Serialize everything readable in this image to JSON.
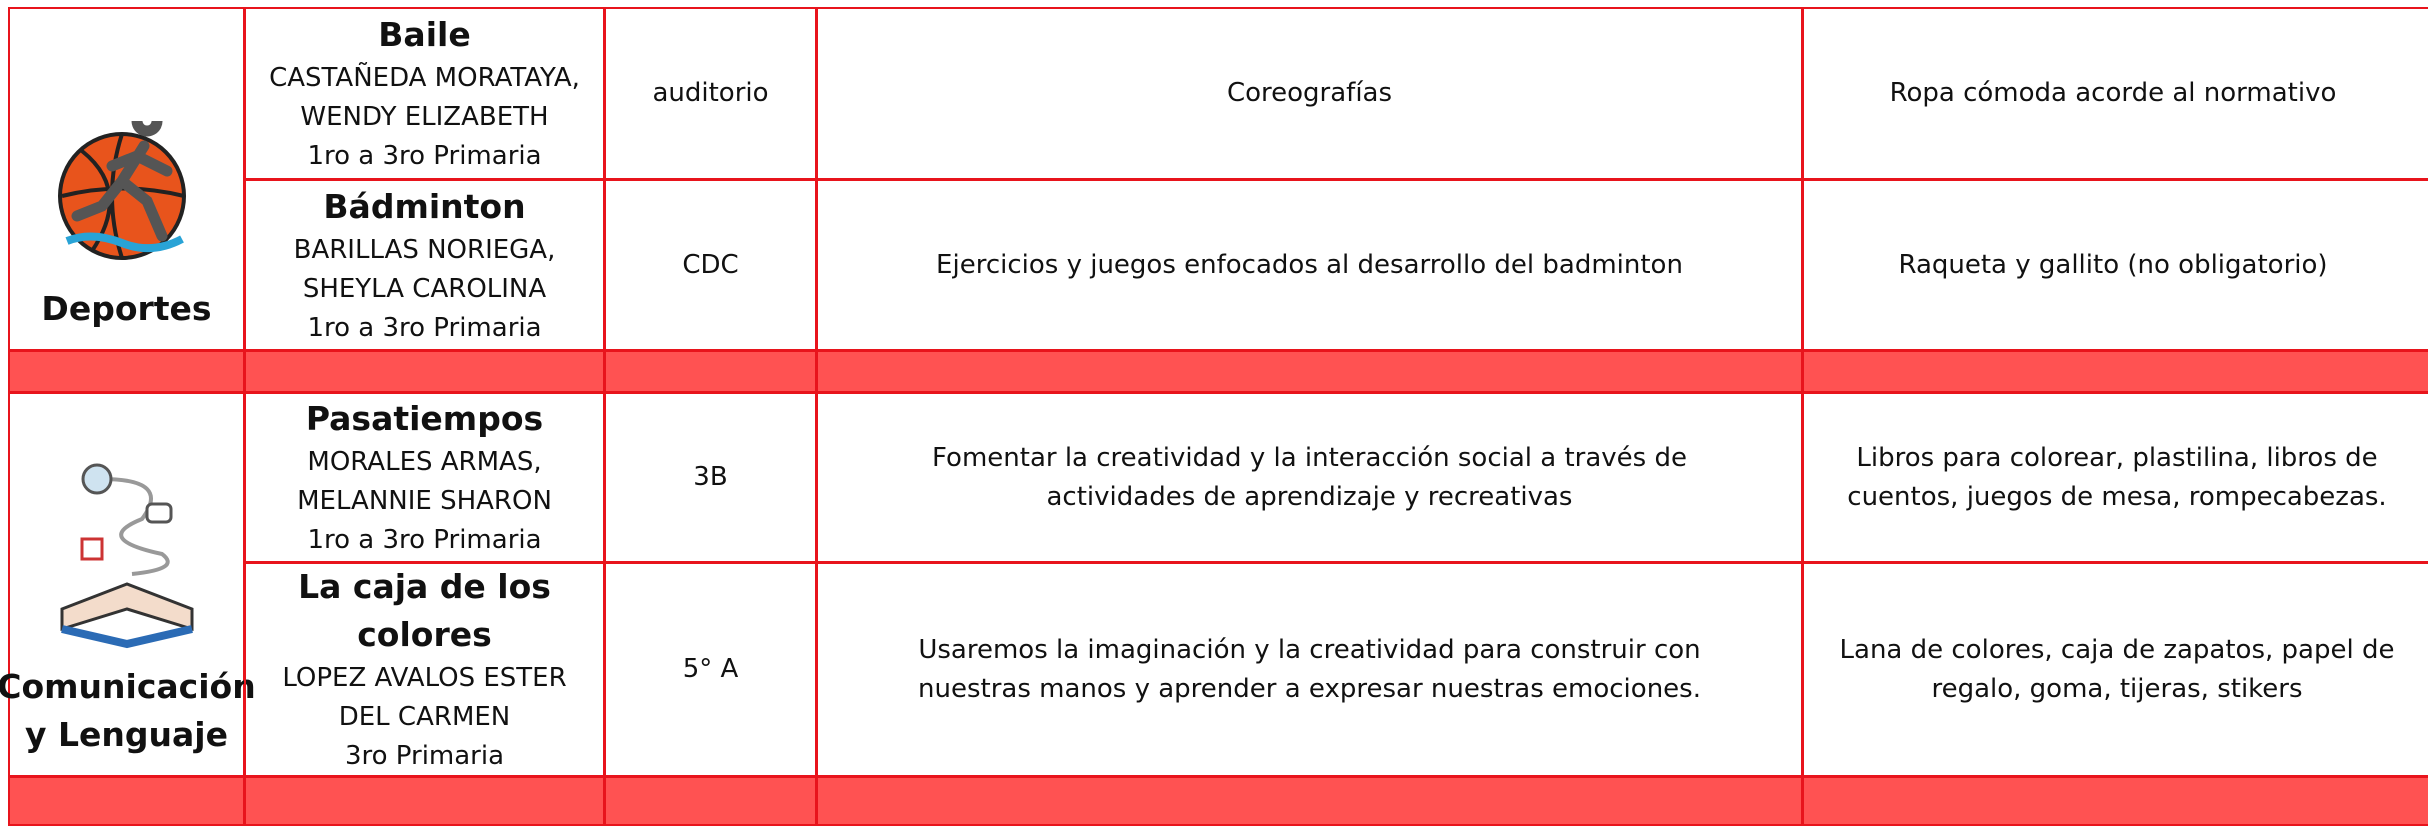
{
  "groups": [
    {
      "area": "Deportes",
      "rows": [
        {
          "activity": "Baile",
          "teacher": "CASTAÑEDA MORATAYA, WENDY ELIZABETH",
          "grade": "1ro a 3ro Primaria",
          "place": "auditorio",
          "description": "Coreografías",
          "materials": "Ropa cómoda acorde al normativo"
        },
        {
          "activity": "Bádminton",
          "teacher": "BARILLAS NORIEGA, SHEYLA CAROLINA",
          "grade": "1ro a 3ro Primaria",
          "place": "CDC",
          "description": "Ejercicios y juegos enfocados al desarrollo del badminton",
          "materials": "Raqueta y gallito (no obligatorio)"
        }
      ]
    },
    {
      "area": "Comunicación y Lenguaje",
      "rows": [
        {
          "activity": "Pasatiempos",
          "teacher": "MORALES ARMAS, MELANNIE SHARON",
          "grade": "1ro a 3ro Primaria",
          "place": "3B",
          "description": "Fomentar la creatividad y la interacción social a través de actividades de aprendizaje y recreativas",
          "materials": "Libros para colorear, plastilina, libros de cuentos, juegos de mesa, rompecabezas."
        },
        {
          "activity": "La caja de los colores",
          "teacher": "LOPEZ AVALOS ESTER DEL CARMEN",
          "grade": "3ro Primaria",
          "place": "5° A",
          "description": "Usaremos la imaginación y la creatividad para construir con nuestras manos y aprender a expresar nuestras emociones.",
          "materials": "Lana de colores, caja de zapatos, papel de regalo, goma, tijeras, stikers"
        }
      ]
    }
  ]
}
